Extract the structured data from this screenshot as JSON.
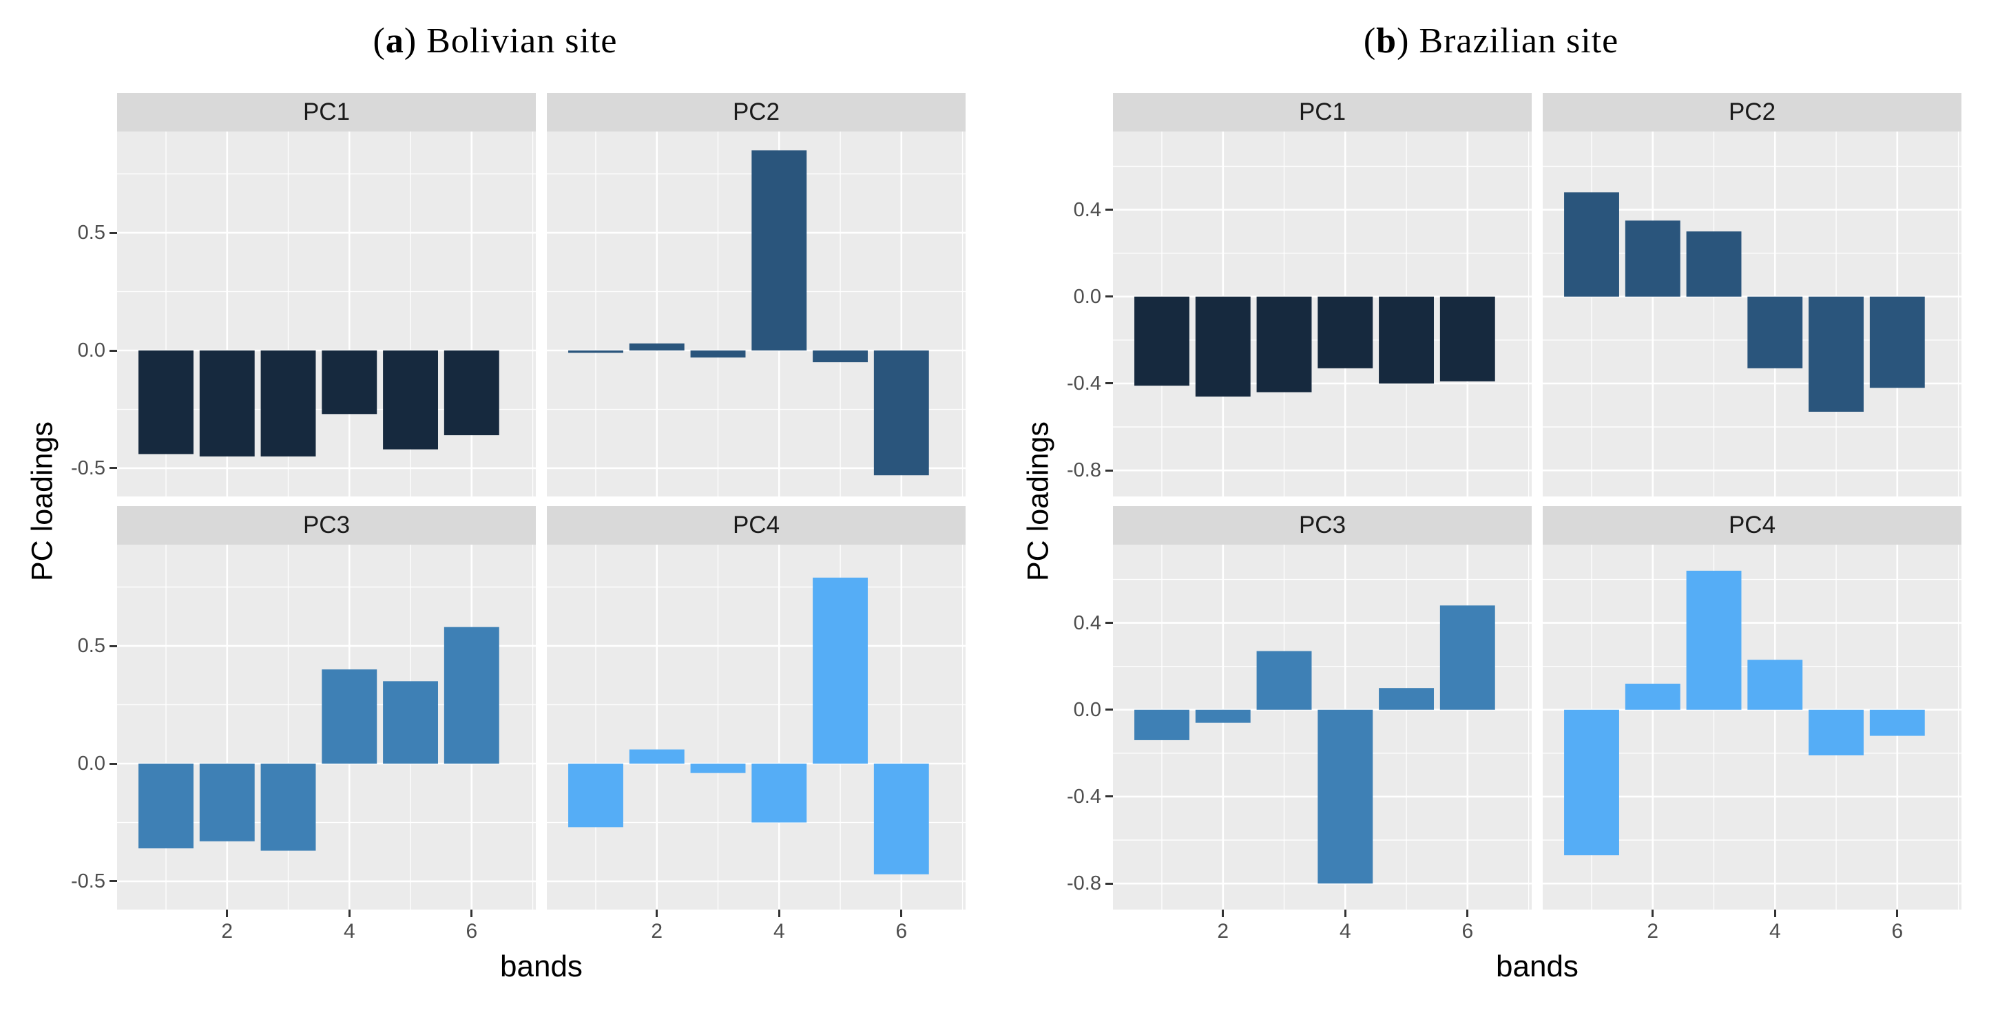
{
  "figure": {
    "background": "#ffffff"
  },
  "chart_data": [
    {
      "type": "bar",
      "title": "Bolivian site",
      "title_marker_prefix": "(",
      "title_marker": "a",
      "title_marker_suffix": ")",
      "xlabel": "bands",
      "ylabel": "PC loadings",
      "facet_layout": "2x2",
      "legend": "none",
      "grid": true,
      "categories": [
        1,
        2,
        3,
        4,
        5,
        6
      ],
      "series": [
        {
          "name": "PC1",
          "color": "#16293E",
          "values": [
            -0.44,
            -0.45,
            -0.45,
            -0.27,
            -0.42,
            -0.36
          ]
        },
        {
          "name": "PC2",
          "color": "#2A557C",
          "values": [
            -0.01,
            0.03,
            -0.03,
            0.85,
            -0.05,
            -0.53
          ]
        },
        {
          "name": "PC3",
          "color": "#3E80B5",
          "values": [
            -0.36,
            -0.33,
            -0.37,
            0.4,
            0.35,
            0.58
          ]
        },
        {
          "name": "PC4",
          "color": "#55ADF6",
          "values": [
            -0.27,
            0.06,
            -0.04,
            -0.25,
            0.79,
            -0.47
          ]
        }
      ],
      "bar_width": 0.9,
      "x_domain": [
        0.2,
        7.05
      ],
      "y_domain": [
        -0.62,
        0.93
      ],
      "x_ticks": [
        {
          "v": 2,
          "label": "2"
        },
        {
          "v": 4,
          "label": "4"
        },
        {
          "v": 6,
          "label": "6"
        }
      ],
      "x_minor": [
        1,
        3,
        5,
        7
      ],
      "y_ticks": [
        {
          "v": 0.5,
          "label": "0.5"
        },
        {
          "v": 0.0,
          "label": "0.0"
        },
        {
          "v": -0.5,
          "label": "-0.5"
        }
      ],
      "y_minor": [
        0.75,
        0.25,
        -0.25
      ],
      "panel_bg": "#EBEBEB",
      "strip_bg": "#D9D9D9",
      "grid_color": "#FFFFFF",
      "tick_color": "#333333",
      "tick_text_color": "#4D4D4D"
    },
    {
      "type": "bar",
      "title": "Brazilian site",
      "title_marker_prefix": "(",
      "title_marker": "b",
      "title_marker_suffix": ")",
      "xlabel": "bands",
      "ylabel": "PC loadings",
      "facet_layout": "2x2",
      "legend": "none",
      "grid": true,
      "categories": [
        1,
        2,
        3,
        4,
        5,
        6
      ],
      "series": [
        {
          "name": "PC1",
          "color": "#16293E",
          "values": [
            -0.41,
            -0.46,
            -0.44,
            -0.33,
            -0.4,
            -0.39
          ]
        },
        {
          "name": "PC2",
          "color": "#2A557C",
          "values": [
            0.48,
            0.35,
            0.3,
            -0.33,
            -0.53,
            -0.42
          ]
        },
        {
          "name": "PC3",
          "color": "#3E80B5",
          "values": [
            -0.14,
            -0.06,
            0.27,
            -0.8,
            0.1,
            0.48
          ]
        },
        {
          "name": "PC4",
          "color": "#55ADF6",
          "values": [
            -0.67,
            0.12,
            0.64,
            0.23,
            -0.21,
            -0.12
          ]
        }
      ],
      "bar_width": 0.9,
      "x_domain": [
        0.2,
        7.05
      ],
      "y_domain": [
        -0.92,
        0.76
      ],
      "x_ticks": [
        {
          "v": 2,
          "label": "2"
        },
        {
          "v": 4,
          "label": "4"
        },
        {
          "v": 6,
          "label": "6"
        }
      ],
      "x_minor": [
        1,
        3,
        5,
        7
      ],
      "y_ticks": [
        {
          "v": 0.4,
          "label": "0.4"
        },
        {
          "v": 0.0,
          "label": "0.0"
        },
        {
          "v": -0.4,
          "label": "-0.4"
        },
        {
          "v": -0.8,
          "label": "-0.8"
        }
      ],
      "y_minor": [
        0.6,
        0.2,
        -0.2,
        -0.6
      ],
      "panel_bg": "#EBEBEB",
      "strip_bg": "#D9D9D9",
      "grid_color": "#FFFFFF",
      "tick_color": "#333333",
      "tick_text_color": "#4D4D4D"
    }
  ]
}
